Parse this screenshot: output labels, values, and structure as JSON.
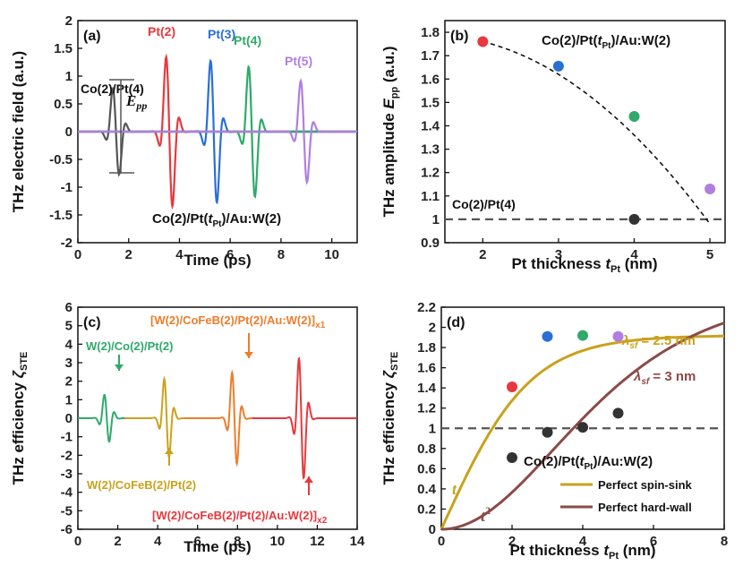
{
  "chart_data": [
    {
      "panel": "(a)",
      "type": "line",
      "xlabel": "Time (ps)",
      "ylabel": "THz electric field (a.u.)",
      "xlim": [
        0,
        11
      ],
      "ylim": [
        -2,
        2
      ],
      "xticks": [
        "0",
        "2",
        "4",
        "6",
        "8",
        "10"
      ],
      "yticks": [
        "-2",
        "-1.5",
        "-1",
        "-0.5",
        "0",
        "0.5",
        "1",
        "1.5",
        "2"
      ],
      "series": [
        {
          "name": "Co(2)/Pt(4)",
          "color": "#555555",
          "center": 1.5,
          "amplitude": 0.95
        },
        {
          "name": "Pt(2)",
          "color": "#e8383d",
          "center": 3.6,
          "amplitude": 1.65
        },
        {
          "name": "Pt(3)",
          "color": "#2a6fd6",
          "center": 5.35,
          "amplitude": 1.57
        },
        {
          "name": "Pt(4)",
          "color": "#2faa6a",
          "center": 6.85,
          "amplitude": 1.44
        },
        {
          "name": "Pt(5)",
          "color": "#b07ee0",
          "center": 8.9,
          "amplitude": 1.12
        }
      ],
      "annotations": {
        "epp_symbol": "E",
        "epp_sub": "pp",
        "sample_prefix": "Co(2)/Pt(",
        "sample_t": "t",
        "sample_sub": "Pt",
        "sample_suffix": ")/Au:W(2)"
      }
    },
    {
      "panel": "(b)",
      "type": "scatter",
      "xlabel_main": "Pt thickness ",
      "xlabel_var": "t",
      "xlabel_sub": "Pt",
      "xlabel_unit": " (nm)",
      "ylabel_main": "THz amplitude ",
      "ylabel_var": "E",
      "ylabel_sub": "pp",
      "ylabel_unit": " (a.u.)",
      "xlim": [
        1.5,
        5.2
      ],
      "ylim": [
        0.9,
        1.85
      ],
      "xticks": [
        "2",
        "3",
        "4",
        "5"
      ],
      "yticks": [
        "0.9",
        "1",
        "1.1",
        "1.2",
        "1.3",
        "1.4",
        "1.5",
        "1.6",
        "1.7",
        "1.8"
      ],
      "x": [
        2,
        3,
        4,
        5
      ],
      "values": [
        1.76,
        1.655,
        1.44,
        1.13
      ],
      "colors": [
        "#e8383d",
        "#2a6fd6",
        "#2faa6a",
        "#b07ee0"
      ],
      "reference": {
        "label": "Co(2)/Pt(4)",
        "x": 4,
        "y": 1.0,
        "line_y": 1.0
      },
      "title_prefix": "Co(2)/Pt(",
      "title_var": "t",
      "title_sub": "Pt",
      "title_suffix": ")/Au:W(2)"
    },
    {
      "panel": "(c)",
      "type": "line",
      "xlabel": "Time (ps)",
      "ylabel_main": "THz efficiency ",
      "ylabel_var": "ζ",
      "ylabel_sub": "STE",
      "xlim": [
        0,
        14
      ],
      "ylim": [
        -6,
        6
      ],
      "xticks": [
        "0",
        "2",
        "4",
        "6",
        "8",
        "10",
        "12",
        "14"
      ],
      "yticks": [
        "-6",
        "-5",
        "-4",
        "-3",
        "-2",
        "-1",
        "0",
        "1",
        "2",
        "3",
        "4",
        "5",
        "6"
      ],
      "series": [
        {
          "name": "W(2)/Co(2)/Pt(2)",
          "color": "#2faa6a",
          "center": 1.45,
          "amplitude": 1.7
        },
        {
          "name": "W(2)/CoFeB(2)/Pt(2)",
          "color": "#c9a21c",
          "center": 4.45,
          "amplitude": 2.85
        },
        {
          "name": "[W(2)/CoFeB(2)/Pt(2)/Au:W(2)]x1",
          "color": "#ee7d2a",
          "center": 7.85,
          "amplitude": 3.3
        },
        {
          "name": "[W(2)/CoFeB(2)/Pt(2)/Au:W(2)]x2",
          "color": "#e8383d",
          "center": 11.2,
          "amplitude": 4.35
        }
      ],
      "labels": {
        "l1": "W(2)/Co(2)/Pt(2)",
        "l2": "W(2)/CoFeB(2)/Pt(2)",
        "l3_main": "[W(2)/CoFeB(2)/Pt(2)/Au:W(2)]",
        "l3_sub": "x1",
        "l4_main": "[W(2)/CoFeB(2)/Pt(2)/Au:W(2)]",
        "l4_sub": "x2"
      }
    },
    {
      "panel": "(d)",
      "type": "scatter",
      "xlabel_main": "Pt thickness ",
      "xlabel_var": "t",
      "xlabel_sub": "Pt",
      "xlabel_unit": " (nm)",
      "ylabel_main": "THz efficiency ",
      "ylabel_var": "ζ",
      "ylabel_sub": "STE",
      "xlim": [
        0,
        8
      ],
      "ylim": [
        0,
        2.2
      ],
      "xticks": [
        "0",
        "2",
        "4",
        "6",
        "8"
      ],
      "yticks": [
        "0",
        "0.2",
        "0.4",
        "0.6",
        "0.8",
        "1",
        "1.2",
        "1.4",
        "1.6",
        "1.8",
        "2",
        "2.2"
      ],
      "colored_points": {
        "x": [
          2,
          3,
          4,
          5
        ],
        "values": [
          1.41,
          1.91,
          1.92,
          1.91
        ],
        "colors": [
          "#e8383d",
          "#2a6fd6",
          "#2faa6a",
          "#b07ee0"
        ]
      },
      "black_points": {
        "x": [
          2,
          3,
          4,
          5
        ],
        "values": [
          0.71,
          0.96,
          1.01,
          1.15
        ]
      },
      "reference_line_y": 1.0,
      "curves": [
        {
          "name": "Perfect spin-sink",
          "color": "#c9a21c",
          "model": "tanh",
          "lambda_sf": 2.5,
          "scale": 1.92
        },
        {
          "name": "Perfect hard-wall",
          "color": "#8a4b48",
          "model": "tanh_sq",
          "lambda_sf": 3,
          "scale": 2.05
        }
      ],
      "lambda_label_1_main": "λ",
      "lambda_label_1_sub": "sf",
      "lambda_label_1_val": " = 2.5 nm",
      "lambda_label_2_main": "λ",
      "lambda_label_2_sub": "sf",
      "lambda_label_2_val": " = 3 nm",
      "t_label": "t",
      "t2_label": "t",
      "t2_sup": "2",
      "sample_prefix": "Co(2)/Pt(",
      "sample_var": "t",
      "sample_sub": "Pt",
      "sample_suffix": ")/Au:W(2)",
      "legend": [
        "Perfect spin-sink",
        "Perfect hard-wall"
      ]
    }
  ]
}
